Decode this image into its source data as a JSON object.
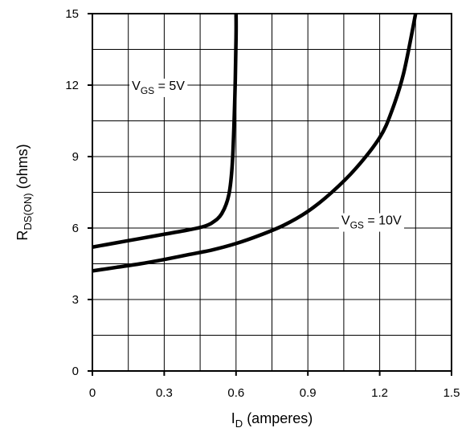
{
  "chart_data": {
    "type": "line",
    "xlabel": {
      "main": "I",
      "sub": "D",
      "rest": " (amperes)"
    },
    "ylabel": {
      "main": "R",
      "sub": "DS(ON)",
      "rest": " (ohms)"
    },
    "xlim": [
      0,
      1.5
    ],
    "ylim": [
      0,
      15
    ],
    "x_ticks": [
      "0",
      "0.3",
      "0.6",
      "0.9",
      "1.2",
      "1.5"
    ],
    "y_ticks": [
      "0",
      "3",
      "6",
      "9",
      "12",
      "15"
    ],
    "grid": true,
    "series": [
      {
        "id": "vgs5",
        "x": [
          0,
          0.1,
          0.2,
          0.3,
          0.4,
          0.46,
          0.5,
          0.54,
          0.57,
          0.585,
          0.595,
          0.6,
          0.6
        ],
        "y": [
          5.2,
          5.38,
          5.56,
          5.74,
          5.92,
          6.05,
          6.22,
          6.6,
          7.4,
          8.8,
          11.5,
          14.0,
          15
        ]
      },
      {
        "id": "vgs10",
        "x": [
          0,
          0.1,
          0.2,
          0.3,
          0.4,
          0.5,
          0.6,
          0.7,
          0.8,
          0.9,
          1.0,
          1.1,
          1.2,
          1.25,
          1.3,
          1.35
        ],
        "y": [
          4.2,
          4.35,
          4.5,
          4.68,
          4.88,
          5.08,
          5.35,
          5.7,
          6.12,
          6.7,
          7.5,
          8.5,
          9.8,
          10.9,
          12.5,
          15
        ]
      }
    ],
    "annotations": [
      {
        "id": "vgs5-label",
        "main": "V",
        "sub": "GS",
        "rest": " = 5V",
        "x": 0.165,
        "y": 11.8
      },
      {
        "id": "vgs10-label",
        "main": "V",
        "sub": "GS",
        "rest": " = 10V",
        "x": 1.04,
        "y": 6.15
      }
    ]
  }
}
